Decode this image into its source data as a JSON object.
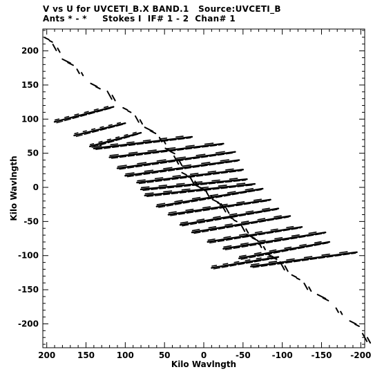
{
  "chart_data": {
    "type": "scatter",
    "title_line1": "V vs U for UVCETI_B.X BAND.1   Source:UVCETI_B",
    "title_line2": "Ants * - *     Stokes I  IF# 1 - 2  Chan# 1",
    "xlabel": "Kilo Wavlngth",
    "ylabel": "Kilo Wavlngth",
    "xlim": [
      205,
      -205
    ],
    "ylim": [
      -235,
      232
    ],
    "x_ticks": [
      200,
      150,
      100,
      50,
      0,
      -50,
      -100,
      -150,
      -200
    ],
    "y_ticks": [
      200,
      150,
      100,
      50,
      0,
      -50,
      -100,
      -150,
      -200
    ],
    "grid": false,
    "color": "#000000",
    "diagonal_band": [
      [
        200,
        218
      ],
      [
        190,
        205
      ],
      [
        175,
        185
      ],
      [
        160,
        170
      ],
      [
        140,
        150
      ],
      [
        120,
        135
      ],
      [
        100,
        115
      ],
      [
        85,
        100
      ],
      [
        70,
        85
      ],
      [
        55,
        70
      ],
      [
        45,
        55
      ],
      [
        35,
        40
      ],
      [
        25,
        20
      ],
      [
        15,
        10
      ],
      [
        5,
        0
      ],
      [
        -5,
        -10
      ],
      [
        -15,
        -20
      ],
      [
        -25,
        -30
      ],
      [
        -35,
        -45
      ],
      [
        -50,
        -60
      ],
      [
        -60,
        -72
      ],
      [
        -72,
        -85
      ],
      [
        -85,
        -100
      ],
      [
        -100,
        -115
      ],
      [
        -115,
        -130
      ],
      [
        -130,
        -145
      ],
      [
        -150,
        -160
      ],
      [
        -170,
        -180
      ],
      [
        -190,
        -198
      ],
      [
        -205,
        -220
      ]
    ],
    "tracks": [
      {
        "x1": 190,
        "y1": 96,
        "x2": 115,
        "y2": 118
      },
      {
        "x1": 165,
        "y1": 76,
        "x2": 100,
        "y2": 94
      },
      {
        "x1": 145,
        "y1": 60,
        "x2": 80,
        "y2": 80
      },
      {
        "x1": 140,
        "y1": 57,
        "x2": 15,
        "y2": 74
      },
      {
        "x1": 120,
        "y1": 44,
        "x2": -25,
        "y2": 64
      },
      {
        "x1": 110,
        "y1": 28,
        "x2": -40,
        "y2": 52
      },
      {
        "x1": 100,
        "y1": 17,
        "x2": -45,
        "y2": 40
      },
      {
        "x1": 85,
        "y1": 7,
        "x2": -50,
        "y2": 26
      },
      {
        "x1": 80,
        "y1": -3,
        "x2": -55,
        "y2": 12
      },
      {
        "x1": 75,
        "y1": -12,
        "x2": -65,
        "y2": 5
      },
      {
        "x1": 60,
        "y1": -28,
        "x2": -75,
        "y2": -2
      },
      {
        "x1": 45,
        "y1": -40,
        "x2": -85,
        "y2": -18
      },
      {
        "x1": 30,
        "y1": -55,
        "x2": -95,
        "y2": -31
      },
      {
        "x1": 15,
        "y1": -66,
        "x2": -110,
        "y2": -42
      },
      {
        "x1": -5,
        "y1": -80,
        "x2": -125,
        "y2": -58
      },
      {
        "x1": -25,
        "y1": -90,
        "x2": -155,
        "y2": -66
      },
      {
        "x1": -45,
        "y1": -104,
        "x2": -160,
        "y2": -80
      },
      {
        "x1": -60,
        "y1": -116,
        "x2": -195,
        "y2": -95
      },
      {
        "x1": -10,
        "y1": -118,
        "x2": -95,
        "y2": -102
      }
    ]
  }
}
